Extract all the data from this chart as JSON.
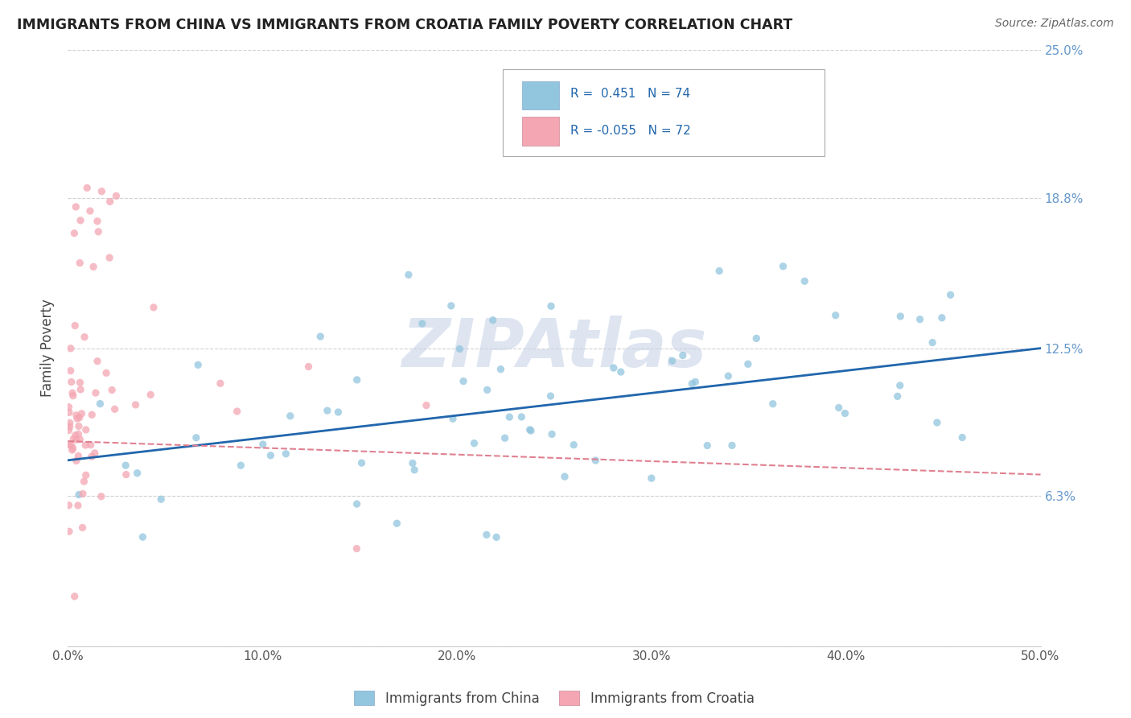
{
  "title": "IMMIGRANTS FROM CHINA VS IMMIGRANTS FROM CROATIA FAMILY POVERTY CORRELATION CHART",
  "source": "Source: ZipAtlas.com",
  "ylabel": "Family Poverty",
  "x_min": 0.0,
  "x_max": 50.0,
  "y_min": 0.0,
  "y_max": 25.0,
  "x_ticks": [
    0.0,
    10.0,
    20.0,
    30.0,
    40.0,
    50.0
  ],
  "x_tick_labels": [
    "0.0%",
    "10.0%",
    "20.0%",
    "30.0%",
    "40.0%",
    "50.0%"
  ],
  "y_ticks": [
    0.0,
    6.3,
    12.5,
    18.8,
    25.0
  ],
  "y_right_labels": [
    "",
    "6.3%",
    "12.5%",
    "18.8%",
    "25.0%"
  ],
  "china_color": "#92c5de",
  "croatia_color": "#f4a6b2",
  "china_R": 0.451,
  "china_N": 74,
  "croatia_R": -0.055,
  "croatia_N": 72,
  "china_line_color": "#2166ac",
  "croatia_line_color": "#e08090",
  "watermark": "ZIPAtlas",
  "watermark_color": "#c8d4e8",
  "grid_color": "#d0d0d0",
  "background_color": "#ffffff",
  "china_line_start_y": 7.8,
  "china_line_end_y": 12.5,
  "croatia_line_start_y": 8.6,
  "croatia_line_end_y": 7.2
}
